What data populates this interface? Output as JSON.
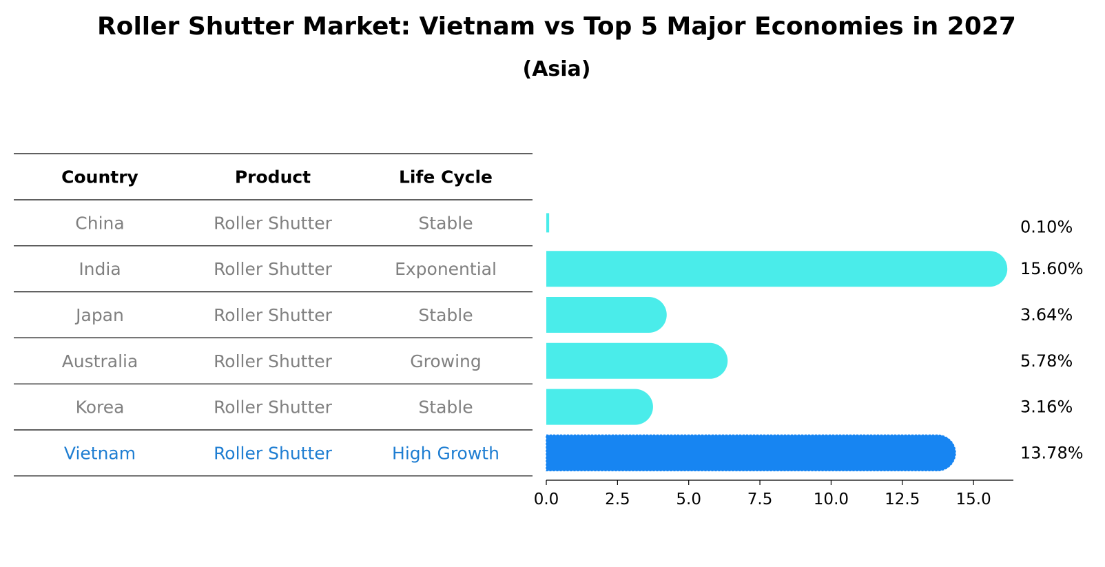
{
  "chart_data": {
    "type": "bar",
    "orientation": "horizontal",
    "title": "Roller Shutter Market: Vietnam vs Top 5 Major Economies in 2027",
    "subtitle": "(Asia)",
    "table": {
      "columns": [
        "Country",
        "Product",
        "Life Cycle"
      ],
      "rows": [
        {
          "country": "China",
          "product": "Roller Shutter",
          "life_cycle": "Stable",
          "highlight": false
        },
        {
          "country": "India",
          "product": "Roller Shutter",
          "life_cycle": "Exponential",
          "highlight": false
        },
        {
          "country": "Japan",
          "product": "Roller Shutter",
          "life_cycle": "Stable",
          "highlight": false
        },
        {
          "country": "Australia",
          "product": "Roller Shutter",
          "life_cycle": "Growing",
          "highlight": false
        },
        {
          "country": "Korea",
          "product": "Roller Shutter",
          "life_cycle": "Stable",
          "highlight": false
        },
        {
          "country": "Vietnam",
          "product": "Roller Shutter",
          "life_cycle": "High Growth",
          "highlight": true
        }
      ]
    },
    "categories": [
      "China",
      "India",
      "Japan",
      "Australia",
      "Korea",
      "Vietnam"
    ],
    "values": [
      0.1,
      15.6,
      3.64,
      5.78,
      3.16,
      13.78
    ],
    "value_labels": [
      "0.10%",
      "15.60%",
      "3.64%",
      "5.78%",
      "3.16%",
      "13.78%"
    ],
    "x_ticks": [
      "0.0",
      "2.5",
      "5.0",
      "7.5",
      "10.0",
      "12.5",
      "15.0"
    ],
    "x_tick_values": [
      0,
      2.5,
      5,
      7.5,
      10,
      12.5,
      15
    ],
    "xlim": [
      0,
      16.4
    ],
    "xlabel": "",
    "ylabel": "",
    "grid": false,
    "colors": {
      "bar": "#4aecea",
      "highlight_bar": "#1785f2",
      "text_muted": "#808080",
      "text_highlight": "#1f7ed2",
      "text": "#000000",
      "line": "#000000"
    }
  }
}
